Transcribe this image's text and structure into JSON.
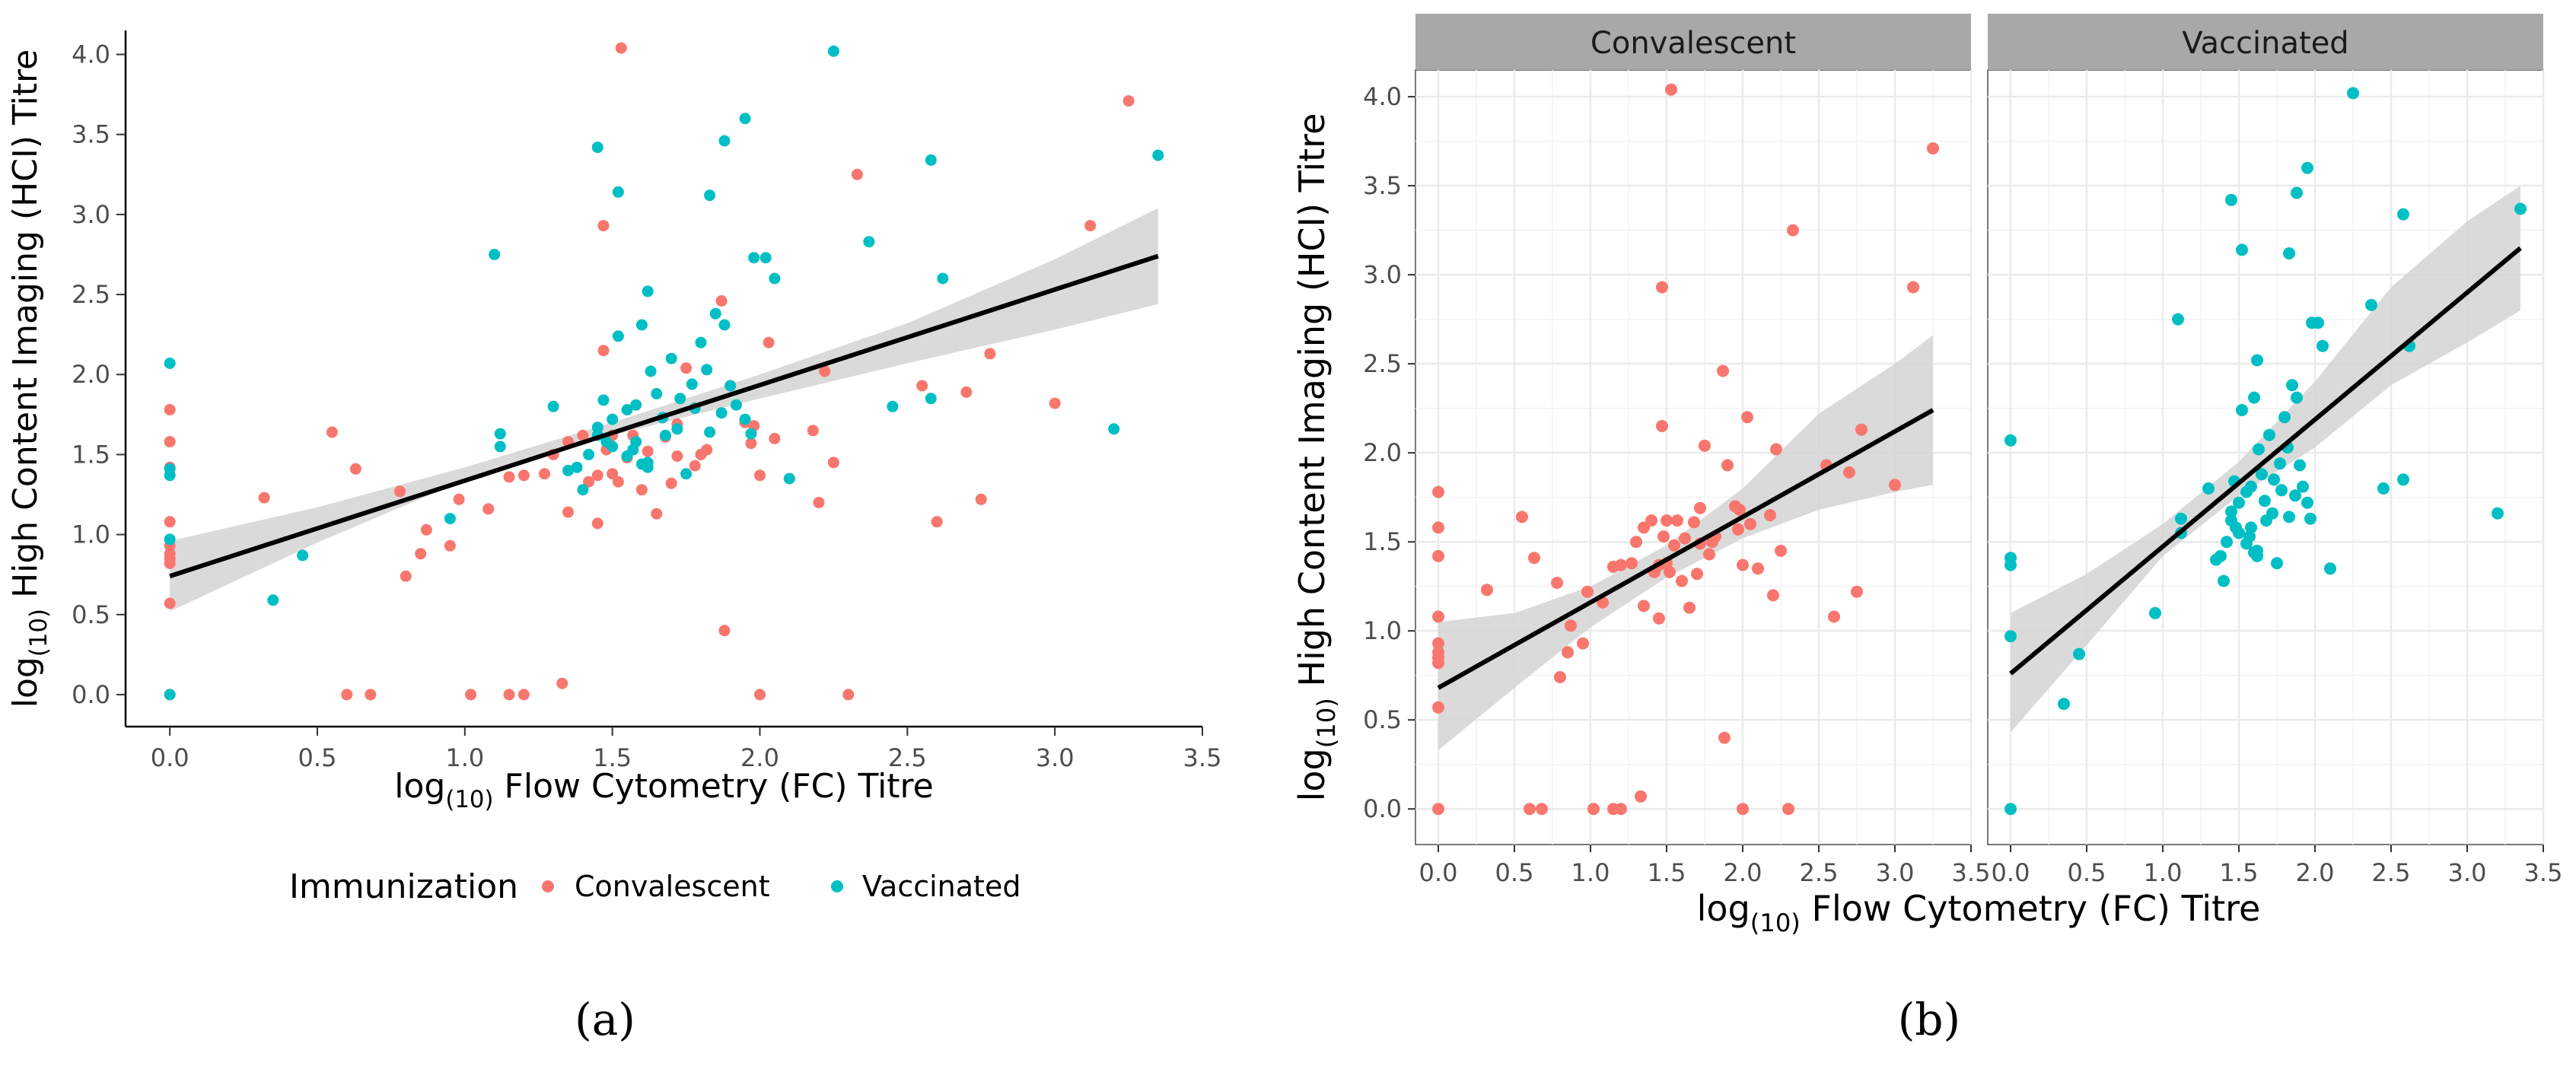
{
  "panel_labels": {
    "a": "(a)",
    "b": "(b)"
  },
  "colors": {
    "convalescent": "#F8766D",
    "vaccinated": "#00BFC4",
    "band": "#D4D4D4",
    "strip": "#A8A8A8",
    "grid": "#EBEBEB"
  },
  "chart_data": [
    {
      "id": "a",
      "type": "scatter",
      "xlabel_prefix": "log",
      "xlabel_sub": "(10)",
      "xlabel_main": "Flow Cytometry (FC) Titre",
      "ylabel_prefix": "log",
      "ylabel_sub": "(10)",
      "ylabel_main": "High Content Imaging (HCI) Titre",
      "xlim": [
        -0.15,
        3.5
      ],
      "ylim": [
        -0.2,
        4.15
      ],
      "x_ticks": [
        "0.0",
        "0.5",
        "1.0",
        "1.5",
        "2.0",
        "2.5",
        "3.0",
        "3.5"
      ],
      "y_ticks": [
        "0.0",
        "0.5",
        "1.0",
        "1.5",
        "2.0",
        "2.5",
        "3.0",
        "3.5",
        "4.0"
      ],
      "legend": {
        "title": "Immunization",
        "items": [
          "Convalescent",
          "Vaccinated"
        ],
        "position": "bottom"
      },
      "fit": {
        "x0": 0.0,
        "y0": 0.74,
        "x1": 3.35,
        "y1": 2.74
      },
      "band": {
        "lower": [
          [
            0,
            0.52
          ],
          [
            0.5,
            0.95
          ],
          [
            1.0,
            1.34
          ],
          [
            1.5,
            1.62
          ],
          [
            2.0,
            1.85
          ],
          [
            2.5,
            2.07
          ],
          [
            3.0,
            2.28
          ],
          [
            3.35,
            2.44
          ]
        ],
        "upper": [
          [
            0,
            0.96
          ],
          [
            0.5,
            1.17
          ],
          [
            1.0,
            1.42
          ],
          [
            1.5,
            1.7
          ],
          [
            2.0,
            2.0
          ],
          [
            2.5,
            2.32
          ],
          [
            3.0,
            2.72
          ],
          [
            3.35,
            3.04
          ]
        ]
      }
    },
    {
      "id": "b",
      "type": "scatter",
      "facets": [
        "Convalescent",
        "Vaccinated"
      ],
      "xlabel_prefix": "log",
      "xlabel_sub": "(10)",
      "xlabel_main": "Flow Cytometry (FC) Titre",
      "ylabel_prefix": "log",
      "ylabel_sub": "(10)",
      "ylabel_main": "High Content Imaging (HCI) Titre",
      "xlim": [
        -0.15,
        3.5
      ],
      "ylim": [
        -0.2,
        4.15
      ],
      "x_ticks": [
        "0.0",
        "0.5",
        "1.0",
        "1.5",
        "2.0",
        "2.5",
        "3.0",
        "3.5"
      ],
      "y_ticks": [
        "0.0",
        "0.5",
        "1.0",
        "1.5",
        "2.0",
        "2.5",
        "3.0",
        "3.5",
        "4.0"
      ],
      "fits": {
        "Convalescent": {
          "x0": 0.0,
          "y0": 0.68,
          "x1": 3.25,
          "y1": 2.24,
          "lower": [
            [
              0,
              0.33
            ],
            [
              0.5,
              0.68
            ],
            [
              1.0,
              1.02
            ],
            [
              1.5,
              1.3
            ],
            [
              2.0,
              1.52
            ],
            [
              2.5,
              1.68
            ],
            [
              3.0,
              1.78
            ],
            [
              3.25,
              1.82
            ]
          ],
          "upper": [
            [
              0,
              1.05
            ],
            [
              0.5,
              1.1
            ],
            [
              1.0,
              1.25
            ],
            [
              1.5,
              1.48
            ],
            [
              2.0,
              1.8
            ],
            [
              2.5,
              2.22
            ],
            [
              3.0,
              2.5
            ],
            [
              3.25,
              2.66
            ]
          ]
        },
        "Vaccinated": {
          "x0": 0.0,
          "y0": 0.76,
          "x1": 3.35,
          "y1": 3.15,
          "lower": [
            [
              0,
              0.43
            ],
            [
              0.5,
              0.92
            ],
            [
              1.0,
              1.42
            ],
            [
              1.5,
              1.76
            ],
            [
              2.0,
              2.03
            ],
            [
              2.5,
              2.38
            ],
            [
              3.0,
              2.62
            ],
            [
              3.35,
              2.8
            ]
          ],
          "upper": [
            [
              0,
              1.1
            ],
            [
              0.5,
              1.32
            ],
            [
              1.0,
              1.6
            ],
            [
              1.5,
              1.95
            ],
            [
              2.0,
              2.4
            ],
            [
              2.5,
              2.93
            ],
            [
              3.0,
              3.3
            ],
            [
              3.35,
              3.5
            ]
          ]
        }
      }
    }
  ],
  "series": {
    "Convalescent": [
      [
        0,
        0
      ],
      [
        0,
        0.57
      ],
      [
        0,
        0.82
      ],
      [
        0,
        0.85
      ],
      [
        0,
        0.88
      ],
      [
        0,
        0.93
      ],
      [
        0,
        1.08
      ],
      [
        0,
        1.42
      ],
      [
        0,
        1.58
      ],
      [
        0,
        1.78
      ],
      [
        0.32,
        1.23
      ],
      [
        0.55,
        1.64
      ],
      [
        0.6,
        0
      ],
      [
        0.63,
        1.41
      ],
      [
        0.68,
        0
      ],
      [
        0.78,
        1.27
      ],
      [
        0.8,
        0.74
      ],
      [
        0.85,
        0.88
      ],
      [
        0.87,
        1.03
      ],
      [
        0.95,
        0.93
      ],
      [
        0.98,
        1.22
      ],
      [
        1.02,
        0
      ],
      [
        1.08,
        1.16
      ],
      [
        1.15,
        1.36
      ],
      [
        1.15,
        0
      ],
      [
        1.2,
        1.37
      ],
      [
        1.2,
        0
      ],
      [
        1.27,
        1.38
      ],
      [
        1.3,
        1.5
      ],
      [
        1.33,
        0.07
      ],
      [
        1.35,
        1.14
      ],
      [
        1.35,
        1.58
      ],
      [
        1.4,
        1.62
      ],
      [
        1.42,
        1.33
      ],
      [
        1.45,
        1.07
      ],
      [
        1.45,
        1.37
      ],
      [
        1.47,
        2.15
      ],
      [
        1.48,
        1.53
      ],
      [
        1.5,
        1.62
      ],
      [
        1.5,
        1.38
      ],
      [
        1.52,
        1.33
      ],
      [
        1.53,
        4.04
      ],
      [
        1.55,
        1.48
      ],
      [
        1.57,
        1.62
      ],
      [
        1.6,
        1.28
      ],
      [
        1.62,
        1.52
      ],
      [
        1.65,
        1.13
      ],
      [
        1.68,
        1.61
      ],
      [
        1.7,
        1.32
      ],
      [
        1.72,
        1.49
      ],
      [
        1.75,
        2.04
      ],
      [
        1.78,
        1.43
      ],
      [
        1.8,
        1.5
      ],
      [
        1.82,
        1.53
      ],
      [
        1.88,
        0.4
      ],
      [
        1.9,
        1.93
      ],
      [
        1.95,
        1.7
      ],
      [
        1.98,
        1.68
      ],
      [
        2.0,
        0
      ],
      [
        2.0,
        1.37
      ],
      [
        1.97,
        1.57
      ],
      [
        1.72,
        1.69
      ],
      [
        2.03,
        2.2
      ],
      [
        2.05,
        1.6
      ],
      [
        2.1,
        1.35
      ],
      [
        2.18,
        1.65
      ],
      [
        2.2,
        1.2
      ],
      [
        2.22,
        2.02
      ],
      [
        2.25,
        1.45
      ],
      [
        2.3,
        0
      ],
      [
        2.33,
        3.25
      ],
      [
        1.47,
        2.93
      ],
      [
        1.87,
        2.46
      ],
      [
        2.55,
        1.93
      ],
      [
        2.6,
        1.08
      ],
      [
        2.7,
        1.89
      ],
      [
        2.75,
        1.22
      ],
      [
        2.78,
        2.13
      ],
      [
        3.0,
        1.82
      ],
      [
        3.12,
        2.93
      ],
      [
        3.25,
        3.71
      ]
    ],
    "Vaccinated": [
      [
        0,
        0
      ],
      [
        0,
        0.97
      ],
      [
        0,
        1.37
      ],
      [
        0,
        1.41
      ],
      [
        0,
        2.07
      ],
      [
        0.35,
        0.59
      ],
      [
        0.45,
        0.87
      ],
      [
        0.95,
        1.1
      ],
      [
        1.1,
        2.75
      ],
      [
        1.12,
        1.63
      ],
      [
        1.12,
        1.55
      ],
      [
        1.3,
        1.8
      ],
      [
        1.35,
        1.4
      ],
      [
        1.38,
        1.42
      ],
      [
        1.4,
        1.28
      ],
      [
        1.42,
        1.5
      ],
      [
        1.45,
        1.62
      ],
      [
        1.45,
        1.67
      ],
      [
        1.47,
        1.84
      ],
      [
        1.48,
        1.58
      ],
      [
        1.5,
        1.55
      ],
      [
        1.5,
        1.72
      ],
      [
        1.52,
        2.24
      ],
      [
        1.55,
        1.49
      ],
      [
        1.55,
        1.78
      ],
      [
        1.57,
        1.53
      ],
      [
        1.58,
        1.58
      ],
      [
        1.58,
        1.81
      ],
      [
        1.6,
        2.31
      ],
      [
        1.62,
        1.45
      ],
      [
        1.62,
        1.42
      ],
      [
        1.63,
        2.02
      ],
      [
        1.65,
        1.88
      ],
      [
        1.67,
        1.73
      ],
      [
        1.68,
        1.62
      ],
      [
        1.7,
        2.1
      ],
      [
        1.72,
        1.66
      ],
      [
        1.73,
        1.85
      ],
      [
        1.75,
        1.38
      ],
      [
        1.77,
        1.94
      ],
      [
        1.78,
        1.79
      ],
      [
        1.8,
        2.2
      ],
      [
        1.82,
        2.03
      ],
      [
        1.83,
        1.64
      ],
      [
        1.85,
        2.38
      ],
      [
        1.87,
        1.76
      ],
      [
        1.88,
        2.31
      ],
      [
        1.9,
        1.93
      ],
      [
        1.92,
        1.81
      ],
      [
        1.95,
        1.72
      ],
      [
        1.97,
        1.63
      ],
      [
        1.62,
        2.52
      ],
      [
        1.98,
        2.73
      ],
      [
        2.02,
        2.73
      ],
      [
        2.05,
        2.6
      ],
      [
        2.1,
        1.35
      ],
      [
        2.25,
        4.02
      ],
      [
        2.37,
        2.83
      ],
      [
        2.45,
        1.8
      ],
      [
        2.58,
        3.34
      ],
      [
        2.58,
        1.85
      ],
      [
        2.62,
        2.6
      ],
      [
        3.2,
        1.66
      ],
      [
        3.35,
        3.37
      ],
      [
        1.45,
        3.42
      ],
      [
        1.52,
        3.14
      ],
      [
        1.83,
        3.12
      ],
      [
        1.88,
        3.46
      ],
      [
        1.95,
        3.6
      ],
      [
        1.6,
        1.44
      ]
    ]
  }
}
